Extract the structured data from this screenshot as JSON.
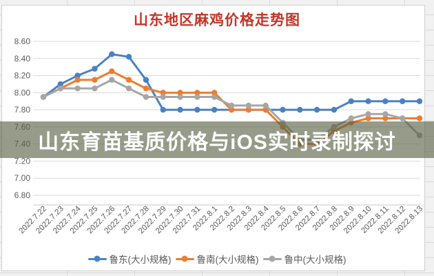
{
  "page": {
    "banner_text": "山东育苗基质价格与iOS实时录制探讨",
    "banner_bg": "rgba(85,95,65,0.62)",
    "banner_text_color": "#ffffff"
  },
  "chart_data": {
    "type": "line",
    "title": "山东地区麻鸡价格走势图",
    "title_color": "#c43527",
    "xlabel": "",
    "ylabel": "",
    "grid": true,
    "legend_position": "bottom",
    "y_axis": {
      "min": 6.8,
      "max": 8.6,
      "step": 0.2,
      "decimals": 2
    },
    "categories": [
      "2022.7.22",
      "2022.7.23",
      "2022.7.24",
      "2022.7.25",
      "2022.7.26",
      "2022.7.27",
      "2022.7.28",
      "2022.7.29",
      "2022.7.30",
      "2022.7.31",
      "2022.8.1",
      "2022.8.2",
      "2022.8.3",
      "2022.8.4",
      "2022.8.5",
      "2022.8.6",
      "2022.8.7",
      "2022.8.8",
      "2022.8.9",
      "2022.8.10",
      "2022.8.11",
      "2022.8.12",
      "2022.8.13"
    ],
    "series": [
      {
        "name": "鲁东(大小规格)",
        "color": "#4a81c4",
        "values": [
          7.95,
          8.1,
          8.2,
          8.28,
          8.45,
          8.42,
          8.15,
          7.8,
          7.8,
          7.8,
          7.8,
          7.8,
          7.8,
          7.8,
          7.8,
          7.8,
          7.8,
          7.8,
          7.9,
          7.9,
          7.9,
          7.9,
          7.9
        ]
      },
      {
        "name": "鲁南(大小规格)",
        "color": "#ed7d31",
        "values": [
          7.95,
          8.05,
          8.15,
          8.15,
          8.25,
          8.15,
          8.05,
          8.0,
          8.0,
          8.0,
          8.0,
          7.8,
          7.8,
          7.8,
          7.6,
          7.4,
          7.4,
          7.55,
          7.65,
          7.7,
          7.7,
          7.7,
          7.7
        ]
      },
      {
        "name": "鲁中(大小规格)",
        "color": "#a6a6a6",
        "values": [
          7.95,
          8.05,
          8.05,
          8.05,
          8.15,
          8.05,
          7.95,
          7.95,
          7.95,
          7.95,
          7.95,
          7.85,
          7.85,
          7.85,
          7.65,
          7.45,
          7.45,
          7.6,
          7.7,
          7.75,
          7.75,
          7.7,
          7.5
        ]
      }
    ]
  }
}
